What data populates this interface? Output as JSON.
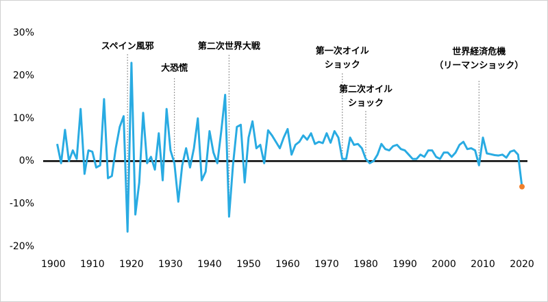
{
  "chart_data": {
    "type": "line",
    "x": [
      1901,
      1902,
      1903,
      1904,
      1905,
      1906,
      1907,
      1908,
      1909,
      1910,
      1911,
      1912,
      1913,
      1914,
      1915,
      1916,
      1917,
      1918,
      1919,
      1920,
      1921,
      1922,
      1923,
      1924,
      1925,
      1926,
      1927,
      1928,
      1929,
      1930,
      1931,
      1932,
      1933,
      1934,
      1935,
      1936,
      1937,
      1938,
      1939,
      1940,
      1941,
      1942,
      1943,
      1944,
      1945,
      1946,
      1947,
      1948,
      1949,
      1950,
      1951,
      1952,
      1953,
      1954,
      1955,
      1956,
      1957,
      1958,
      1959,
      1960,
      1961,
      1962,
      1963,
      1964,
      1965,
      1966,
      1967,
      1968,
      1969,
      1970,
      1971,
      1972,
      1973,
      1974,
      1975,
      1976,
      1977,
      1978,
      1979,
      1980,
      1981,
      1982,
      1983,
      1984,
      1985,
      1986,
      1987,
      1988,
      1989,
      1990,
      1991,
      1992,
      1993,
      1994,
      1995,
      1996,
      1997,
      1998,
      1999,
      2000,
      2001,
      2002,
      2003,
      2004,
      2005,
      2006,
      2007,
      2008,
      2009,
      2010,
      2011,
      2012,
      2013,
      2014,
      2015,
      2016,
      2017,
      2018,
      2019,
      2020
    ],
    "series": [
      {
        "color": "#29abe2",
        "end_color": "#f07f2a",
        "values": [
          4,
          -0.5,
          7.3,
          0,
          2.5,
          0.5,
          12.2,
          -3,
          2.5,
          2.2,
          -1.5,
          -1,
          14.5,
          -4,
          -3.5,
          3,
          8,
          10.5,
          -16.5,
          23,
          -12.5,
          -5,
          11.3,
          -0.5,
          1,
          -2,
          6.5,
          -4.5,
          12.2,
          2.5,
          -0.5,
          -9.5,
          -1,
          3,
          -1.5,
          3,
          10,
          -4.5,
          -2.5,
          7,
          2,
          -0.5,
          7,
          15.5,
          -13,
          -1,
          8,
          8.5,
          -5,
          5.5,
          9.3,
          3,
          3.8,
          -0.5,
          7.2,
          6,
          4.5,
          3,
          5.5,
          7.5,
          1.5,
          3.8,
          4.5,
          6,
          5,
          6.5,
          4,
          4.5,
          4.2,
          6.5,
          4.3,
          7,
          5.5,
          0.5,
          0.5,
          5.5,
          3.8,
          4,
          3,
          0.5,
          -0.5,
          0,
          1.5,
          4,
          2.8,
          2.5,
          3.5,
          3.8,
          2.8,
          2.5,
          1.5,
          0.5,
          0.5,
          1.5,
          1,
          2.5,
          2.5,
          1,
          0.5,
          2,
          2,
          1,
          2,
          3.8,
          4.5,
          2.8,
          3,
          2.5,
          -1,
          5.5,
          1.8,
          1.6,
          1.4,
          1.3,
          1.5,
          0.8,
          2.2,
          2.5,
          1.5,
          -6
        ]
      }
    ],
    "xlim": [
      1897.4,
      2021.4
    ],
    "ylim": [
      -20,
      30
    ],
    "xticks": [
      1900,
      1910,
      1920,
      1930,
      1940,
      1950,
      1960,
      1970,
      1980,
      1990,
      2000,
      2010,
      2020
    ],
    "yticks": [
      {
        "value": -20,
        "label": "-20%"
      },
      {
        "value": -10,
        "label": "-10%"
      },
      {
        "value": 0,
        "label": "0%"
      },
      {
        "value": 10,
        "label": "10%"
      },
      {
        "value": 20,
        "label": "20%"
      },
      {
        "value": 30,
        "label": "30%"
      }
    ],
    "annotations": [
      {
        "x": 1919,
        "lines": [
          "スペイン風邪"
        ]
      },
      {
        "x": 1931,
        "lines": [
          "大恐慌"
        ]
      },
      {
        "x": 1945,
        "lines": [
          "第二次世界大戦"
        ]
      },
      {
        "x": 1974,
        "lines": [
          "第一次オイル",
          "ショック"
        ]
      },
      {
        "x": 1980,
        "lines": [
          "第二次オイル",
          "ショック"
        ]
      },
      {
        "x": 2009,
        "lines": [
          "世界経済危機",
          "（リーマンショック）"
        ]
      }
    ]
  }
}
